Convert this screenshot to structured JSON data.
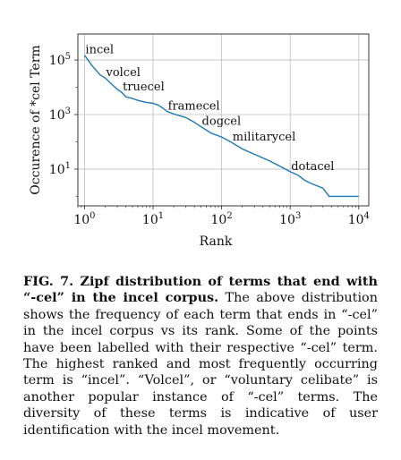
{
  "chart_data": {
    "type": "line",
    "xscale": "log",
    "yscale": "log",
    "xlabel": "Rank",
    "ylabel": "Occurence of *cel Term",
    "xlim": [
      0.8,
      14000
    ],
    "ylim": [
      0.45,
      900000
    ],
    "grid": true,
    "x_ticks": [
      {
        "value": 1,
        "base": "10",
        "exp": "0"
      },
      {
        "value": 10,
        "base": "10",
        "exp": "1"
      },
      {
        "value": 100,
        "base": "10",
        "exp": "2"
      },
      {
        "value": 1000,
        "base": "10",
        "exp": "3"
      },
      {
        "value": 10000,
        "base": "10",
        "exp": "4"
      }
    ],
    "y_ticks": [
      {
        "value": 10,
        "base": "10",
        "exp": "1"
      },
      {
        "value": 1000,
        "base": "10",
        "exp": "3"
      },
      {
        "value": 100000,
        "base": "10",
        "exp": "5"
      }
    ],
    "series": [
      {
        "color": "#1f77b4",
        "points": [
          [
            1,
            150000
          ],
          [
            1.3,
            60000
          ],
          [
            1.7,
            28000
          ],
          [
            2,
            22000
          ],
          [
            2.5,
            13000
          ],
          [
            3,
            8500
          ],
          [
            3.5,
            6500
          ],
          [
            4,
            4500
          ],
          [
            5,
            3900
          ],
          [
            6,
            3300
          ],
          [
            7,
            3000
          ],
          [
            8,
            2800
          ],
          [
            10,
            2600
          ],
          [
            12,
            2200
          ],
          [
            14,
            1700
          ],
          [
            16,
            1300
          ],
          [
            20,
            1050
          ],
          [
            30,
            780
          ],
          [
            40,
            520
          ],
          [
            50,
            360
          ],
          [
            60,
            270
          ],
          [
            70,
            210
          ],
          [
            100,
            150
          ],
          [
            140,
            95
          ],
          [
            200,
            55
          ],
          [
            300,
            35
          ],
          [
            500,
            20
          ],
          [
            700,
            13
          ],
          [
            1000,
            8
          ],
          [
            1300,
            6
          ],
          [
            1600,
            4
          ],
          [
            2000,
            3
          ],
          [
            3000,
            2
          ],
          [
            3700,
            1
          ],
          [
            10000,
            1
          ]
        ]
      }
    ],
    "annotations": [
      {
        "text": "incel",
        "x": 1,
        "y": 150000
      },
      {
        "text": "volcel",
        "x": 2,
        "y": 22000
      },
      {
        "text": "truecel",
        "x": 3.5,
        "y": 6500
      },
      {
        "text": "framecel",
        "x": 16,
        "y": 1300
      },
      {
        "text": "dogcel",
        "x": 50,
        "y": 360
      },
      {
        "text": "militarycel",
        "x": 140,
        "y": 95
      },
      {
        "text": "dotacel",
        "x": 1000,
        "y": 8
      }
    ]
  },
  "caption": {
    "lead": "FIG. 7. Zipf distribution of terms that end with “-cel” in the incel corpus.",
    "body": " The above distribution shows the frequency of each term that ends in “-cel” in the incel corpus vs its rank. Some of the points have been labelled with their respective “-cel” term. The highest ranked and most frequently occurring term is “incel”. “Volcel”, or “voluntary celibate” is another popular instance of “-cel” terms. The diversity of these terms is indicative of user identification with the incel movement."
  }
}
